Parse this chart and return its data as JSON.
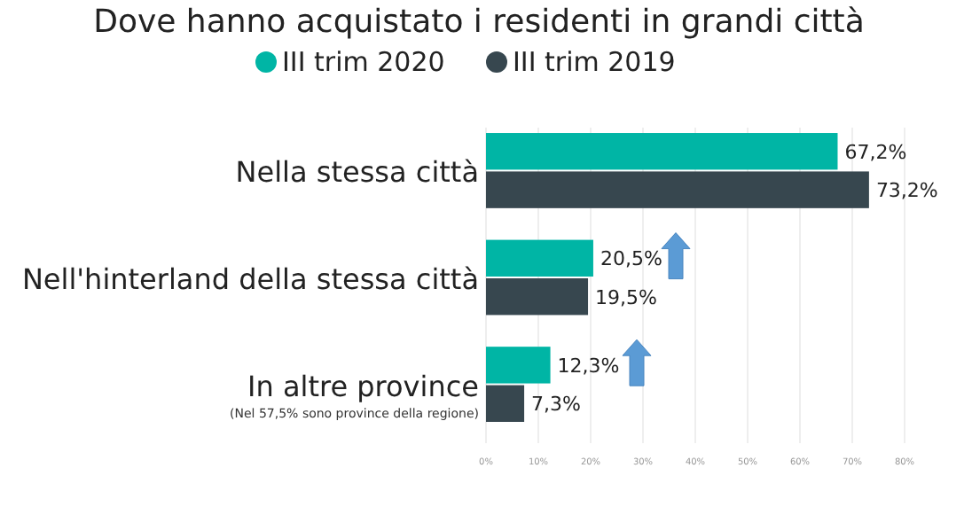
{
  "chart_data": {
    "type": "bar",
    "orientation": "horizontal",
    "title": "Dove hanno acquistato i residenti in grandi città",
    "categories": [
      "Nella stessa città",
      "Nell'hinterland della stessa città",
      "In altre province"
    ],
    "series": [
      {
        "name": "III trim 2020",
        "color": "#00b5a5",
        "values": [
          67.2,
          20.5,
          12.3
        ],
        "value_labels": [
          "67,2%",
          "20,5%",
          "12,3%"
        ]
      },
      {
        "name": "III trim 2019",
        "color": "#37474f",
        "values": [
          73.2,
          19.5,
          7.3
        ],
        "value_labels": [
          "73,2%",
          "19,5%",
          "7,3%"
        ]
      }
    ],
    "xlim": [
      0,
      80
    ],
    "xticks": [
      {
        "value": 0,
        "label": "0%"
      },
      {
        "value": 10,
        "label": "10%"
      },
      {
        "value": 20,
        "label": "20%"
      },
      {
        "value": 30,
        "label": "30%"
      },
      {
        "value": 40,
        "label": "40%"
      },
      {
        "value": 50,
        "label": "50%"
      },
      {
        "value": 60,
        "label": "60%"
      },
      {
        "value": 70,
        "label": "70%"
      },
      {
        "value": 80,
        "label": "80%"
      }
    ],
    "grid": "x",
    "legend": "top",
    "annotations": [
      "(Nel 57,5% sono province della regione)"
    ]
  }
}
